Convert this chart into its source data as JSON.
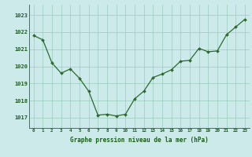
{
  "hours": [
    0,
    1,
    2,
    3,
    4,
    5,
    6,
    7,
    8,
    9,
    10,
    11,
    12,
    13,
    14,
    15,
    16,
    17,
    18,
    19,
    20,
    21,
    22,
    23
  ],
  "pressure": [
    1021.8,
    1021.55,
    1020.2,
    1019.6,
    1019.85,
    1019.3,
    1018.55,
    1017.15,
    1017.2,
    1017.1,
    1017.2,
    1018.1,
    1018.55,
    1019.35,
    1019.55,
    1019.8,
    1020.3,
    1020.35,
    1021.05,
    1020.85,
    1020.9,
    1021.85,
    1022.3,
    1022.75
  ],
  "line_color": "#2d6a2d",
  "marker_color": "#2d6a2d",
  "bg_color": "#cceaea",
  "grid_color": "#99ccbb",
  "axis_label_color": "#1a5c1a",
  "ylabel_ticks": [
    1017,
    1018,
    1019,
    1020,
    1021,
    1022,
    1023
  ],
  "ylim": [
    1016.4,
    1023.6
  ],
  "xlabel": "Graphe pression niveau de la mer (hPa)",
  "xlim": [
    -0.5,
    23.5
  ]
}
